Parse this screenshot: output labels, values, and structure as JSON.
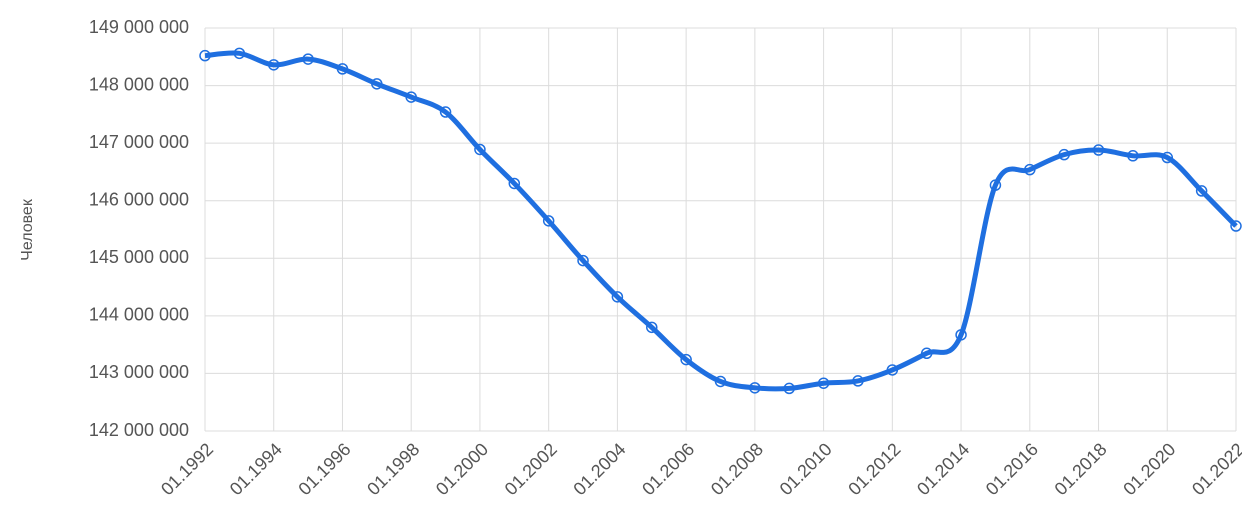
{
  "chart_data": {
    "type": "line",
    "y_label": "Человек",
    "categories": [
      "01.1992",
      null,
      "01.1994",
      null,
      "01.1996",
      null,
      "01.1998",
      null,
      "01.2000",
      null,
      "01.2002",
      null,
      "01.2004",
      null,
      "01.2006",
      null,
      "01.2008",
      null,
      "01.2010",
      null,
      "01.2012",
      null,
      "01.2014",
      null,
      "01.2016",
      null,
      "01.2018",
      null,
      "01.2020",
      null,
      "01.2022"
    ],
    "series": [
      {
        "name": "Человек",
        "color": "#1f6fe0",
        "values": [
          148520000,
          148560000,
          148360000,
          148460000,
          148290000,
          148030000,
          147800000,
          147540000,
          146890000,
          146300000,
          145650000,
          144960000,
          144330000,
          143800000,
          143240000,
          142860000,
          142750000,
          142740000,
          142830000,
          142870000,
          143060000,
          143350000,
          143670000,
          146270000,
          146540000,
          146800000,
          146880000,
          146780000,
          146750000,
          146170000,
          145560000
        ]
      }
    ],
    "ylim": [
      142000000,
      149000000
    ],
    "yticks": [
      {
        "value": 142000000,
        "label": "142 000 000"
      },
      {
        "value": 143000000,
        "label": "143 000 000"
      },
      {
        "value": 144000000,
        "label": "144 000 000"
      },
      {
        "value": 145000000,
        "label": "145 000 000"
      },
      {
        "value": 146000000,
        "label": "146 000 000"
      },
      {
        "value": 147000000,
        "label": "147 000 000"
      },
      {
        "value": 148000000,
        "label": "148 000 000"
      },
      {
        "value": 149000000,
        "label": "149 000 000"
      }
    ],
    "grid": true
  }
}
